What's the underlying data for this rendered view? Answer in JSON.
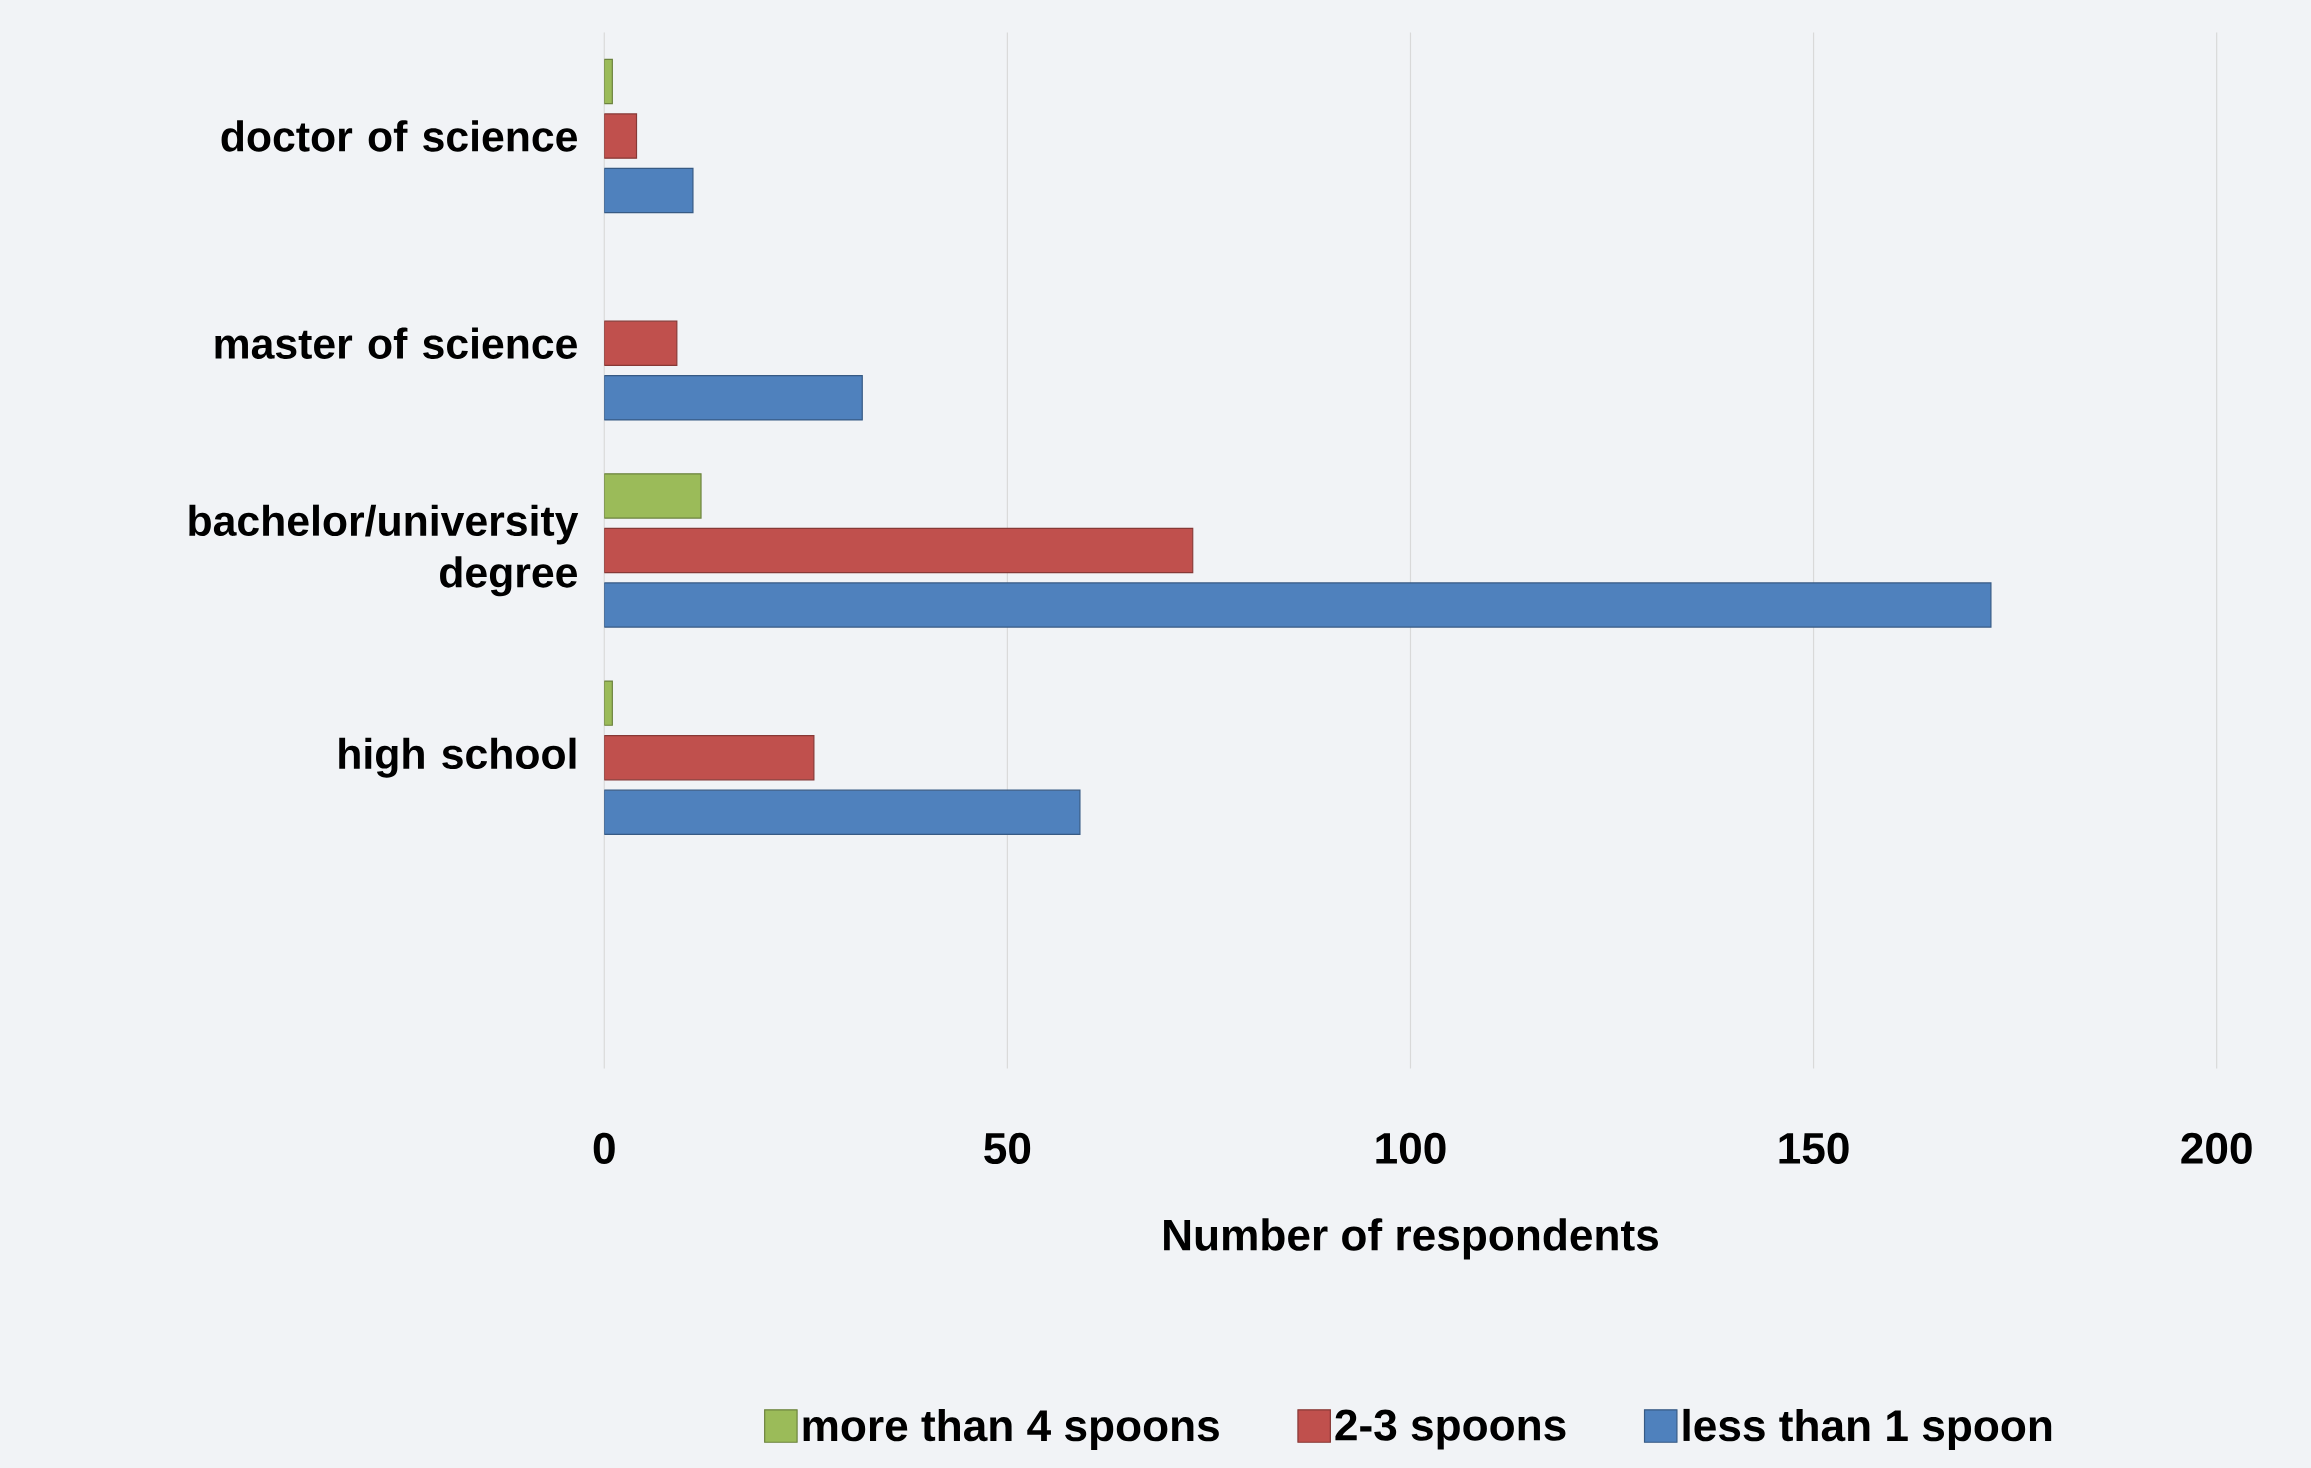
{
  "chart_data": {
    "type": "bar",
    "orientation": "horizontal",
    "xlabel": "Number of respondents",
    "categories": [
      "doctor of science",
      "master of science",
      "bachelor/university degree",
      "high school",
      null
    ],
    "series": [
      {
        "name": "more than 4 spoons",
        "color": "#9bbb59",
        "values": [
          1,
          null,
          12,
          1,
          null
        ]
      },
      {
        "name": "2-3 spoons",
        "color": "#c0504d",
        "values": [
          4,
          9,
          73,
          26,
          null
        ]
      },
      {
        "name": "less than 1 spoon",
        "color": "#4f81bd",
        "values": [
          11,
          32,
          172,
          59,
          null
        ]
      }
    ],
    "xlim": [
      0,
      200
    ],
    "xticks": [
      0,
      50,
      100,
      150,
      200
    ],
    "grid": "x",
    "legend": "bottom"
  }
}
